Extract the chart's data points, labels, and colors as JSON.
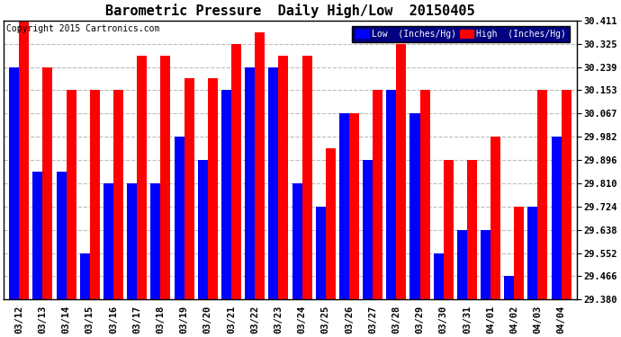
{
  "title": "Barometric Pressure  Daily High/Low  20150405",
  "copyright": "Copyright 2015 Cartronics.com",
  "legend_low": "Low  (Inches/Hg)",
  "legend_high": "High  (Inches/Hg)",
  "categories": [
    "03/12",
    "03/13",
    "03/14",
    "03/15",
    "03/16",
    "03/17",
    "03/18",
    "03/19",
    "03/20",
    "03/21",
    "03/22",
    "03/23",
    "03/24",
    "03/25",
    "03/26",
    "03/27",
    "03/28",
    "03/29",
    "03/30",
    "03/31",
    "04/01",
    "04/02",
    "04/03",
    "04/04"
  ],
  "low_values": [
    30.239,
    29.853,
    29.853,
    29.552,
    29.81,
    29.81,
    29.81,
    29.982,
    29.896,
    30.153,
    30.239,
    30.239,
    29.81,
    29.724,
    30.067,
    29.896,
    30.153,
    30.067,
    29.552,
    29.638,
    29.638,
    29.466,
    29.724,
    29.982
  ],
  "high_values": [
    30.411,
    30.239,
    30.153,
    30.153,
    30.153,
    30.282,
    30.282,
    30.196,
    30.196,
    30.325,
    30.368,
    30.282,
    30.282,
    29.939,
    30.067,
    30.153,
    30.325,
    30.153,
    29.896,
    29.896,
    29.982,
    29.724,
    30.153,
    30.153
  ],
  "ylim_min": 29.38,
  "ylim_max": 30.411,
  "yticks": [
    29.38,
    29.466,
    29.552,
    29.638,
    29.724,
    29.81,
    29.896,
    29.982,
    30.067,
    30.153,
    30.239,
    30.325,
    30.411
  ],
  "low_color": "#0000ff",
  "high_color": "#ff0000",
  "background_color": "#ffffff",
  "plot_bg_color": "#ffffff",
  "grid_color": "#bbbbbb",
  "title_fontsize": 11,
  "tick_fontsize": 7.5,
  "copyright_fontsize": 7
}
